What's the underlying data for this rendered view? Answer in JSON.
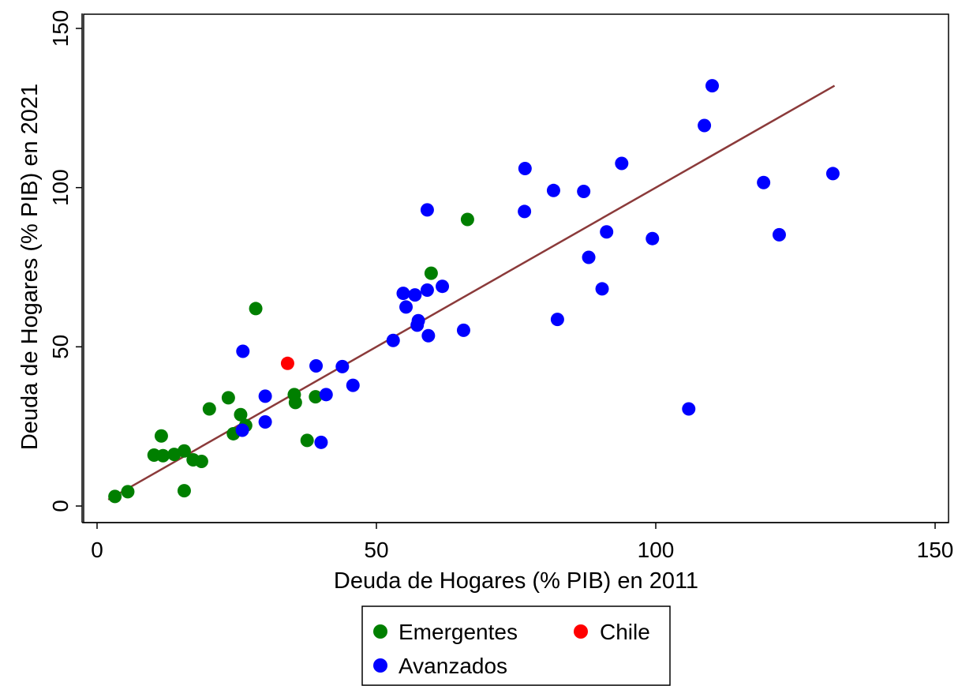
{
  "chart_data": {
    "type": "scatter",
    "xlabel": "Deuda de Hogares (% PIB) en 2011",
    "ylabel": "Deuda de Hogares (% PIB) en 2021",
    "xlim": [
      0,
      150
    ],
    "ylim": [
      0,
      150
    ],
    "xticks": [
      "0",
      "50",
      "100",
      "150"
    ],
    "yticks": [
      "0",
      "50",
      "100",
      "150"
    ],
    "grid": false,
    "legend_position": "bottom",
    "series": [
      {
        "name": "Emergentes",
        "color": "#007f00",
        "points": [
          [
            3.2,
            3.0
          ],
          [
            5.5,
            4.5
          ],
          [
            10.2,
            16.0
          ],
          [
            11.8,
            15.8
          ],
          [
            11.5,
            22.0
          ],
          [
            13.8,
            16.2
          ],
          [
            15.6,
            17.3
          ],
          [
            17.2,
            14.5
          ],
          [
            18.7,
            14.0
          ],
          [
            15.6,
            4.8
          ],
          [
            20.1,
            30.5
          ],
          [
            23.5,
            34.0
          ],
          [
            24.4,
            22.7
          ],
          [
            25.7,
            28.7
          ],
          [
            26.6,
            25.3
          ],
          [
            28.4,
            62.0
          ],
          [
            35.3,
            35.0
          ],
          [
            35.5,
            32.5
          ],
          [
            37.6,
            20.6
          ],
          [
            39.1,
            34.3
          ],
          [
            59.8,
            73.1
          ],
          [
            66.3,
            90.0
          ]
        ]
      },
      {
        "name": "Chile",
        "color": "#ff0000",
        "points": [
          [
            34.1,
            44.8
          ]
        ]
      },
      {
        "name": "Avanzados",
        "color": "#0000ff",
        "points": [
          [
            26.1,
            48.6
          ],
          [
            26.0,
            23.8
          ],
          [
            30.1,
            34.5
          ],
          [
            30.1,
            26.4
          ],
          [
            39.2,
            44.0
          ],
          [
            41.0,
            35.0
          ],
          [
            40.1,
            20.0
          ],
          [
            43.9,
            43.8
          ],
          [
            45.8,
            37.9
          ],
          [
            53.0,
            52.0
          ],
          [
            54.8,
            66.8
          ],
          [
            55.3,
            62.5
          ],
          [
            56.9,
            66.3
          ],
          [
            57.5,
            58.2
          ],
          [
            57.3,
            56.8
          ],
          [
            59.1,
            67.8
          ],
          [
            59.3,
            53.5
          ],
          [
            59.1,
            93.0
          ],
          [
            61.8,
            69.0
          ],
          [
            65.6,
            55.2
          ],
          [
            76.5,
            92.5
          ],
          [
            76.6,
            106.0
          ],
          [
            81.7,
            99.1
          ],
          [
            82.4,
            58.6
          ],
          [
            87.1,
            98.8
          ],
          [
            88.0,
            78.1
          ],
          [
            90.4,
            68.2
          ],
          [
            91.2,
            86.1
          ],
          [
            93.9,
            107.6
          ],
          [
            99.4,
            84.0
          ],
          [
            105.9,
            30.5
          ],
          [
            108.7,
            119.5
          ],
          [
            110.1,
            132.0
          ],
          [
            119.3,
            101.6
          ],
          [
            122.1,
            85.2
          ],
          [
            131.7,
            104.4
          ]
        ]
      }
    ],
    "fit_line": {
      "color": "#8b3a3a",
      "x_start": 2,
      "x_end": 132,
      "slope": 1.0,
      "intercept": 0.0
    }
  }
}
